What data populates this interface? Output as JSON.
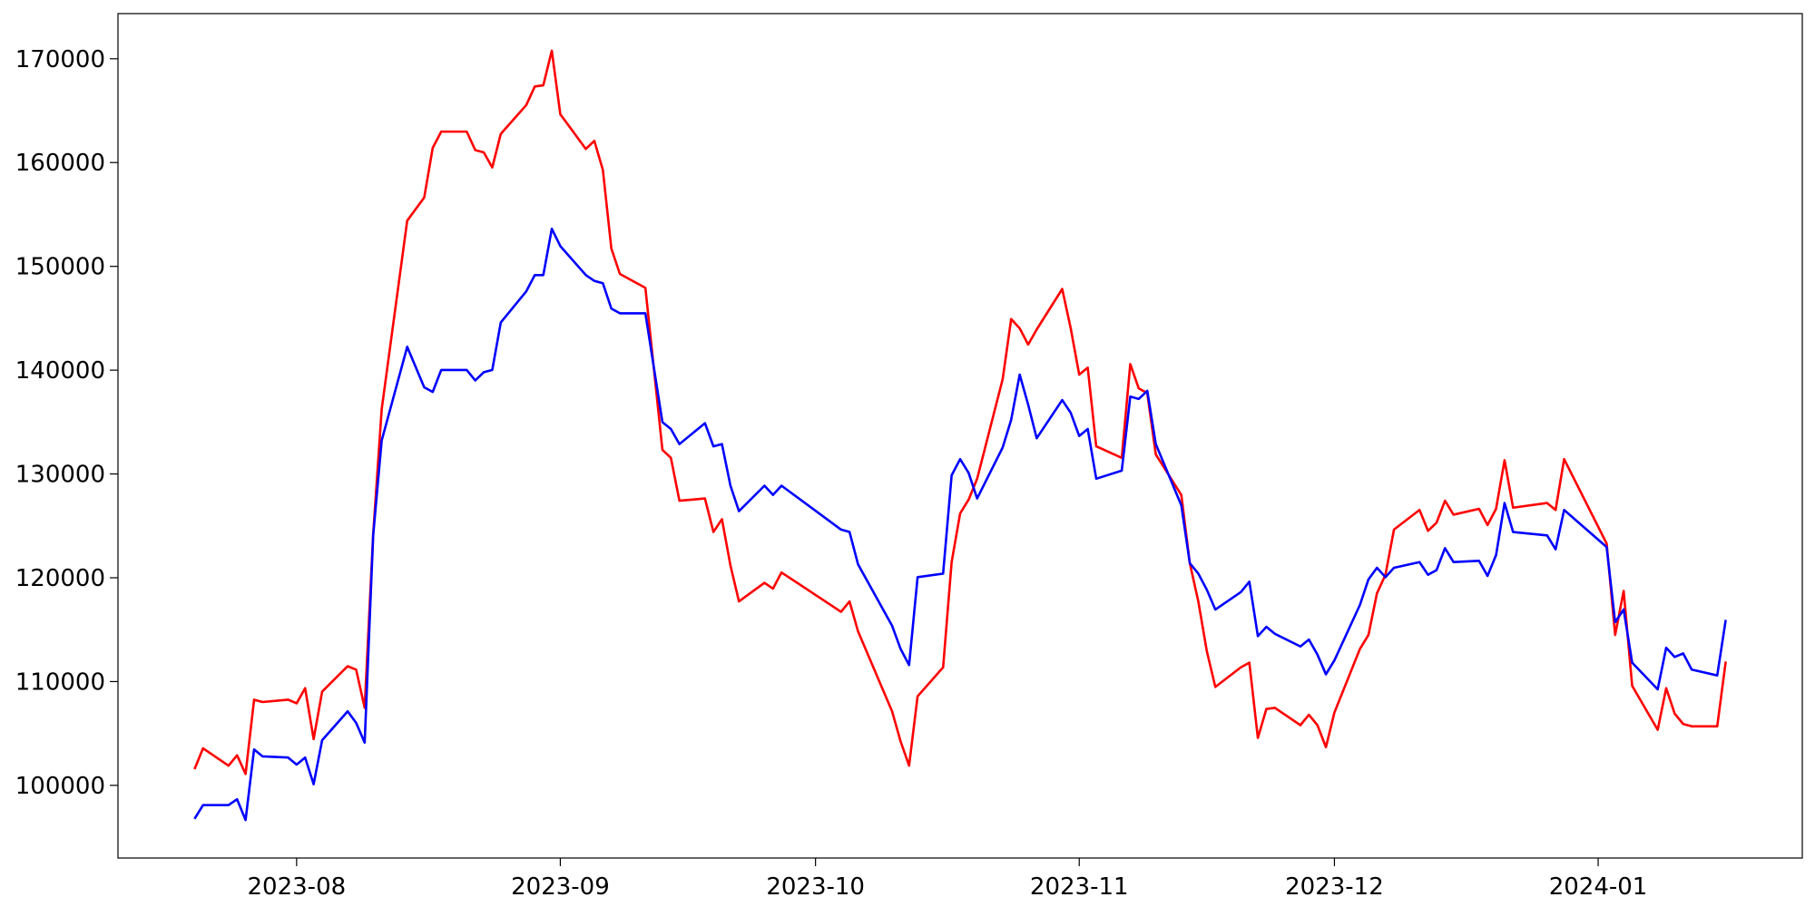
{
  "chart_data": {
    "type": "line",
    "x": [
      "2023-07-20",
      "2023-07-21",
      "2023-07-24",
      "2023-07-25",
      "2023-07-26",
      "2023-07-27",
      "2023-07-28",
      "2023-07-31",
      "2023-08-01",
      "2023-08-02",
      "2023-08-03",
      "2023-08-04",
      "2023-08-07",
      "2023-08-08",
      "2023-08-09",
      "2023-08-10",
      "2023-08-11",
      "2023-08-14",
      "2023-08-16",
      "2023-08-17",
      "2023-08-18",
      "2023-08-21",
      "2023-08-22",
      "2023-08-23",
      "2023-08-24",
      "2023-08-25",
      "2023-08-28",
      "2023-08-29",
      "2023-08-30",
      "2023-08-31",
      "2023-09-01",
      "2023-09-04",
      "2023-09-05",
      "2023-09-06",
      "2023-09-07",
      "2023-09-08",
      "2023-09-11",
      "2023-09-13",
      "2023-09-14",
      "2023-09-15",
      "2023-09-18",
      "2023-09-19",
      "2023-09-20",
      "2023-09-21",
      "2023-09-22",
      "2023-09-25",
      "2023-09-26",
      "2023-09-27",
      "2023-10-04",
      "2023-10-05",
      "2023-10-06",
      "2023-10-10",
      "2023-10-11",
      "2023-10-12",
      "2023-10-13",
      "2023-10-16",
      "2023-10-17",
      "2023-10-18",
      "2023-10-19",
      "2023-10-20",
      "2023-10-23",
      "2023-10-24",
      "2023-10-25",
      "2023-10-26",
      "2023-10-27",
      "2023-10-30",
      "2023-10-31",
      "2023-11-01",
      "2023-11-02",
      "2023-11-03",
      "2023-11-06",
      "2023-11-07",
      "2023-11-08",
      "2023-11-09",
      "2023-11-10",
      "2023-11-13",
      "2023-11-14",
      "2023-11-15",
      "2023-11-16",
      "2023-11-17",
      "2023-11-20",
      "2023-11-21",
      "2023-11-22",
      "2023-11-23",
      "2023-11-24",
      "2023-11-27",
      "2023-11-28",
      "2023-11-29",
      "2023-11-30",
      "2023-12-01",
      "2023-12-04",
      "2023-12-05",
      "2023-12-06",
      "2023-12-07",
      "2023-12-08",
      "2023-12-11",
      "2023-12-12",
      "2023-12-13",
      "2023-12-14",
      "2023-12-15",
      "2023-12-18",
      "2023-12-19",
      "2023-12-20",
      "2023-12-21",
      "2023-12-22",
      "2023-12-26",
      "2023-12-27",
      "2023-12-28",
      "2024-01-02",
      "2024-01-03",
      "2024-01-04",
      "2024-01-05",
      "2024-01-08",
      "2024-01-09",
      "2024-01-10",
      "2024-01-11",
      "2024-01-12",
      "2024-01-15",
      "2024-01-16"
    ],
    "series": [
      {
        "color": "#ff0000",
        "values": [
          101560,
          103570,
          101900,
          102900,
          101100,
          108250,
          108030,
          108250,
          107900,
          109360,
          104460,
          109030,
          111480,
          111150,
          107470,
          124190,
          136230,
          154400,
          156630,
          161420,
          162980,
          162980,
          161200,
          160980,
          159530,
          162760,
          165540,
          167330,
          167440,
          170780,
          164650,
          161310,
          162090,
          159300,
          151720,
          149270,
          147930,
          132330,
          131550,
          127420,
          127640,
          124410,
          125640,
          121180,
          117720,
          119510,
          118950,
          120510,
          116720,
          117720,
          114830,
          107130,
          104240,
          101900,
          108580,
          111370,
          121510,
          126200,
          127530,
          129540,
          139130,
          144920,
          144030,
          142470,
          143920,
          147820,
          144030,
          139570,
          140240,
          132660,
          131550,
          140580,
          138240,
          137790,
          131880,
          127980,
          121400,
          117720,
          112930,
          109480,
          111370,
          111820,
          104570,
          107360,
          107470,
          105800,
          106800,
          105800,
          103680,
          107020,
          113150,
          114490,
          118500,
          120290,
          124640,
          126530,
          124520,
          125300,
          127420,
          126080,
          126640,
          125080,
          126640,
          131320,
          126750,
          127200,
          126530,
          131430,
          123300,
          114490,
          118730,
          109590,
          105350,
          109360,
          106910,
          105910,
          105690,
          105690,
          111930
        ]
      },
      {
        "color": "#0000ff",
        "values": [
          96770,
          98100,
          98100,
          98660,
          96660,
          103460,
          102790,
          102680,
          102000,
          102680,
          100110,
          104350,
          107130,
          106020,
          104120,
          124080,
          133220,
          142250,
          138350,
          137900,
          140020,
          140020,
          139010,
          139800,
          140020,
          144590,
          147600,
          149160,
          149160,
          153620,
          151950,
          149160,
          148600,
          148380,
          145930,
          145480,
          145480,
          135000,
          134330,
          132880,
          134890,
          132660,
          132880,
          128870,
          126420,
          128870,
          127980,
          128870,
          124640,
          124410,
          121290,
          115380,
          113150,
          111590,
          120060,
          120400,
          129870,
          131430,
          130100,
          127640,
          132550,
          135220,
          139570,
          136670,
          133440,
          137120,
          135890,
          133660,
          134330,
          129540,
          130320,
          137450,
          137230,
          138010,
          132880,
          126980,
          121400,
          120400,
          118840,
          116940,
          118620,
          119620,
          114380,
          115270,
          114600,
          113380,
          114050,
          112600,
          110700,
          112040,
          117390,
          119840,
          120960,
          120060,
          120960,
          121510,
          120290,
          120730,
          122850,
          121510,
          121630,
          120180,
          122180,
          127200,
          124410,
          124080,
          122740,
          126530,
          122960,
          115720,
          116940,
          111820,
          109250,
          113260,
          112370,
          112710,
          111150,
          110590,
          115940
        ]
      }
    ],
    "xlim": [
      "2023-07-11",
      "2024-01-25"
    ],
    "xticks": [
      {
        "value": "2023-08-01",
        "label": "2023-08"
      },
      {
        "value": "2023-09-01",
        "label": "2023-09"
      },
      {
        "value": "2023-10-01",
        "label": "2023-10"
      },
      {
        "value": "2023-11-01",
        "label": "2023-11"
      },
      {
        "value": "2023-12-01",
        "label": "2023-12"
      },
      {
        "value": "2024-01-01",
        "label": "2024-01"
      }
    ],
    "ylim": [
      93000,
      174350
    ],
    "yticks": [
      100000,
      110000,
      120000,
      130000,
      140000,
      150000,
      160000,
      170000
    ],
    "grid": false
  }
}
